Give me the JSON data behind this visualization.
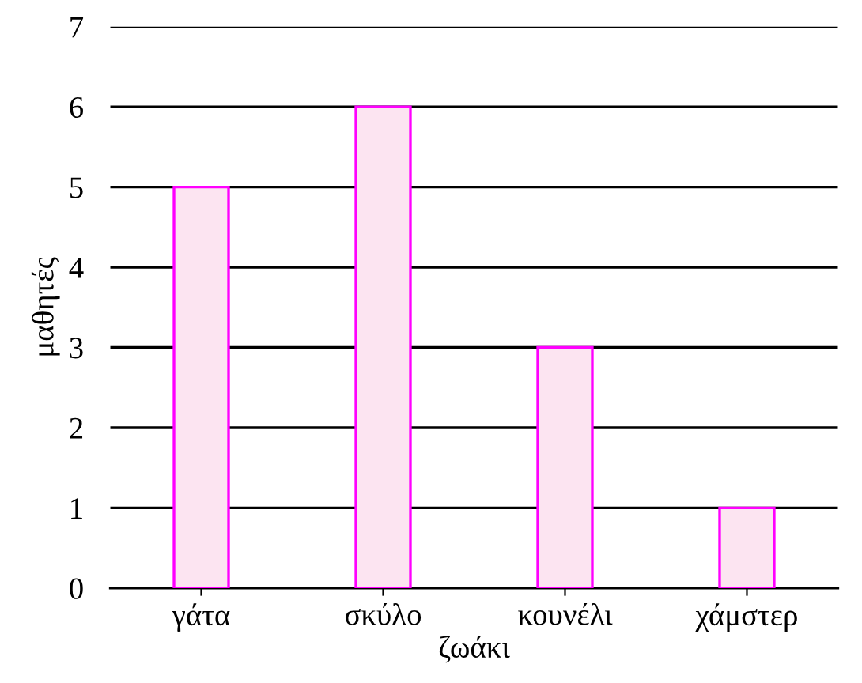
{
  "chart_data": {
    "type": "bar",
    "xlabel": "ζωάκι",
    "ylabel": "μαθητές",
    "categories": [
      "γάτα",
      "σκύλο",
      "κουνέλι",
      "χάμστερ"
    ],
    "values": [
      5,
      6,
      3,
      1
    ],
    "color": "#fce4f1",
    "ylim": [
      0,
      7
    ],
    "yticks": [
      0,
      1,
      2,
      3,
      4,
      5,
      6,
      7
    ],
    "grid": "y"
  }
}
